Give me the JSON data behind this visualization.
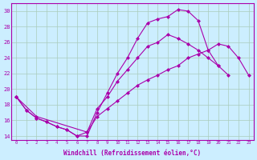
{
  "bg_color": "#cceeff",
  "grid_color": "#aaccbb",
  "line_color": "#aa00aa",
  "xlabel": "Windchill (Refroidissement éolien,°C)",
  "xlim": [
    -0.5,
    23.5
  ],
  "ylim": [
    13.5,
    31
  ],
  "yticks": [
    14,
    16,
    18,
    20,
    22,
    24,
    26,
    28,
    30
  ],
  "xticks": [
    0,
    1,
    2,
    3,
    4,
    5,
    6,
    7,
    8,
    9,
    10,
    11,
    12,
    13,
    14,
    15,
    16,
    17,
    18,
    19,
    20,
    21,
    22,
    23
  ],
  "line1_x": [
    0,
    1,
    2,
    3,
    4,
    5,
    6,
    7,
    8,
    9,
    10,
    11,
    12,
    13,
    14,
    15,
    16,
    17,
    18,
    19,
    20,
    21,
    22,
    23
  ],
  "line1_y": [
    19.0,
    17.3,
    16.3,
    15.8,
    15.2,
    14.8,
    14.0,
    14.0,
    17.0,
    19.5,
    22.0,
    24.0,
    26.5,
    28.5,
    29.0,
    29.3,
    30.2,
    30.0,
    28.8,
    25.0,
    23.0,
    21.8,
    null,
    null
  ],
  "line2_x": [
    0,
    1,
    2,
    3,
    4,
    5,
    6,
    7,
    8,
    9,
    10,
    11,
    12,
    13,
    14,
    15,
    16,
    17,
    18,
    19,
    20,
    21,
    22,
    23
  ],
  "line2_y": [
    19.0,
    17.3,
    16.3,
    15.8,
    15.2,
    14.8,
    14.0,
    14.5,
    17.5,
    19.0,
    21.0,
    22.5,
    24.0,
    25.5,
    26.0,
    27.0,
    26.5,
    25.8,
    25.0,
    24.0,
    23.0,
    null,
    null,
    null
  ],
  "line3_x": [
    0,
    2,
    7,
    8,
    9,
    10,
    11,
    12,
    13,
    14,
    15,
    16,
    17,
    18,
    19,
    20,
    21,
    22,
    23
  ],
  "line3_y": [
    19.0,
    16.5,
    14.5,
    16.5,
    17.5,
    18.5,
    19.5,
    20.5,
    21.2,
    21.8,
    22.5,
    23.0,
    24.0,
    24.5,
    25.0,
    25.8,
    25.5,
    24.0,
    21.8
  ]
}
